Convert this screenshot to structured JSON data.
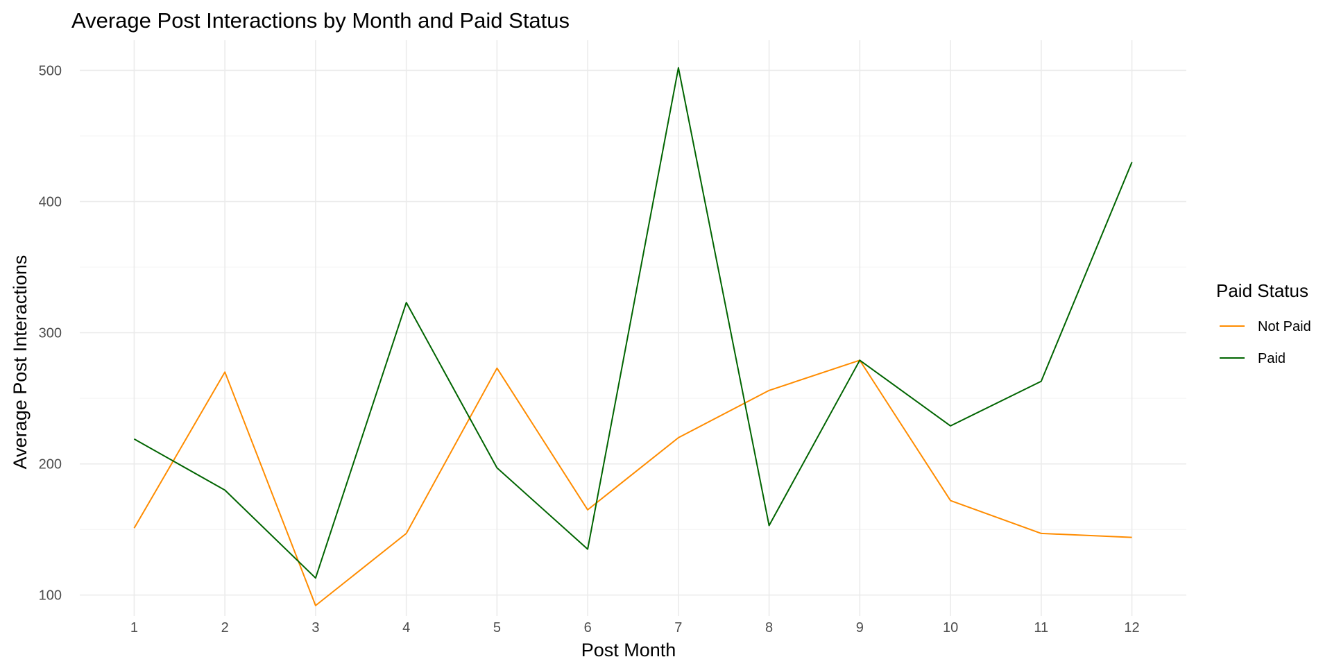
{
  "chart_data": {
    "type": "line",
    "title": "Average Post Interactions by Month and Paid Status",
    "xlabel": "Post Month",
    "ylabel": "Average Post Interactions",
    "x": [
      1,
      2,
      3,
      4,
      5,
      6,
      7,
      8,
      9,
      10,
      11,
      12
    ],
    "xlim": [
      0.4,
      12.6
    ],
    "ylim": [
      84,
      523
    ],
    "x_ticks": [
      1,
      2,
      3,
      4,
      5,
      6,
      7,
      8,
      9,
      10,
      11,
      12
    ],
    "y_ticks": [
      100,
      200,
      300,
      400,
      500
    ],
    "y_minor_ticks": [
      150,
      250,
      350,
      450
    ],
    "grid": true,
    "legend": {
      "title": "Paid Status",
      "position": "right"
    },
    "series": [
      {
        "name": "Not Paid",
        "color": "#ff8c00",
        "values": [
          151,
          270,
          92,
          147,
          273,
          165,
          220,
          256,
          279,
          172,
          147,
          144
        ]
      },
      {
        "name": "Paid",
        "color": "#006400",
        "values": [
          219,
          180,
          113,
          323,
          197,
          135,
          502,
          153,
          279,
          229,
          263,
          430
        ]
      }
    ]
  }
}
